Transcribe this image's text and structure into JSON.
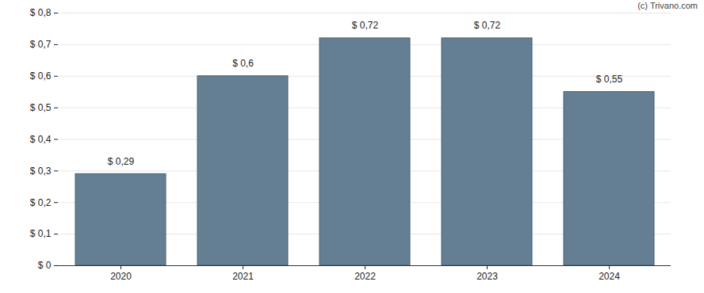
{
  "chart_data": {
    "type": "bar",
    "annotations": [
      "(c) Trivano.com"
    ],
    "categories": [
      "2020",
      "2021",
      "2022",
      "2023",
      "2024"
    ],
    "values": [
      0.29,
      0.6,
      0.72,
      0.72,
      0.55
    ],
    "value_labels": [
      "$ 0,29",
      "$ 0,6",
      "$ 0,72",
      "$ 0,72",
      "$ 0,55"
    ],
    "data_labels": true,
    "color": "#647f93",
    "ylim": [
      0,
      0.8
    ],
    "yticks": [
      {
        "value": 0,
        "label": "$ 0"
      },
      {
        "value": 0.1,
        "label": "$ 0,1"
      },
      {
        "value": 0.2,
        "label": "$ 0,2"
      },
      {
        "value": 0.3,
        "label": "$ 0,3"
      },
      {
        "value": 0.4,
        "label": "$ 0,4"
      },
      {
        "value": 0.5,
        "label": "$ 0,5"
      },
      {
        "value": 0.6,
        "label": "$ 0,6"
      },
      {
        "value": 0.7,
        "label": "$ 0,7"
      },
      {
        "value": 0.8,
        "label": "$ 0,8"
      }
    ],
    "grid": true
  }
}
